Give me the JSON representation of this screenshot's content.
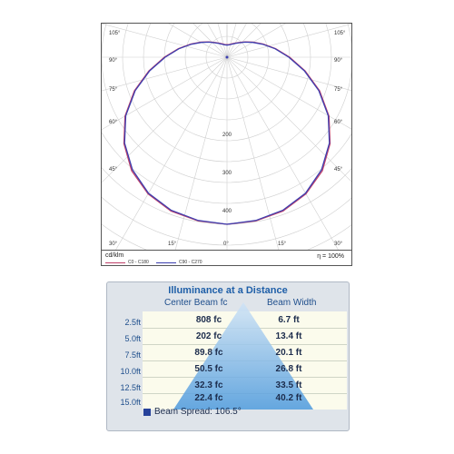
{
  "chart_data": [
    {
      "type": "polar",
      "angle_labels": {
        "left": [
          "105°",
          "90°",
          "75°",
          "60°",
          "45°",
          "30°"
        ],
        "bottom": [
          "15°",
          "0°",
          "15°"
        ],
        "right": [
          "105°",
          "90°",
          "75°",
          "60°",
          "45°",
          "30°"
        ]
      },
      "radial_ticks": [
        200,
        300,
        400
      ],
      "unit": "cd/klm",
      "efficiency": "η = 100%",
      "series": [
        {
          "name": "C0 - C180",
          "color": "#c0406a",
          "points": [
            [
              0,
              400
            ],
            [
              10,
              398
            ],
            [
              20,
              392
            ],
            [
              30,
              378
            ],
            [
              40,
              355
            ],
            [
              50,
              322
            ],
            [
              60,
              282
            ],
            [
              70,
              236
            ],
            [
              80,
              190
            ],
            [
              90,
              150
            ],
            [
              100,
              118
            ],
            [
              110,
              92
            ],
            [
              120,
              72
            ],
            [
              130,
              57
            ],
            [
              140,
              46
            ],
            [
              150,
              39
            ],
            [
              160,
              34
            ],
            [
              170,
              31
            ],
            [
              180,
              30
            ]
          ]
        },
        {
          "name": "C90 - C270",
          "color": "#3c3fb0",
          "points": [
            [
              0,
              400
            ],
            [
              10,
              397
            ],
            [
              20,
              390
            ],
            [
              30,
              376
            ],
            [
              40,
              352
            ],
            [
              50,
              320
            ],
            [
              60,
              280
            ],
            [
              70,
              234
            ],
            [
              80,
              188
            ],
            [
              90,
              148
            ],
            [
              100,
              117
            ],
            [
              110,
              91
            ],
            [
              120,
              71
            ],
            [
              130,
              56
            ],
            [
              140,
              45
            ],
            [
              150,
              38
            ],
            [
              160,
              33
            ],
            [
              170,
              30
            ],
            [
              180,
              29
            ]
          ]
        }
      ]
    },
    {
      "type": "table",
      "title": "Illuminance at a Distance",
      "headers": [
        "Center Beam fc",
        "Beam Width"
      ],
      "rows": [
        {
          "distance": "2.5ft",
          "fc": "808 fc",
          "width": "6.7 ft"
        },
        {
          "distance": "5.0ft",
          "fc": "202 fc",
          "width": "13.4 ft"
        },
        {
          "distance": "7.5ft",
          "fc": "89.8 fc",
          "width": "20.1 ft"
        },
        {
          "distance": "10.0ft",
          "fc": "50.5 fc",
          "width": "26.8 ft"
        },
        {
          "distance": "12.5ft",
          "fc": "32.3 fc",
          "width": "33.5 ft"
        },
        {
          "distance": "15.0ft",
          "fc": "22.4 fc",
          "width": "40.2 ft"
        }
      ],
      "beam_spread": "Beam Spread: 106.5°"
    }
  ]
}
